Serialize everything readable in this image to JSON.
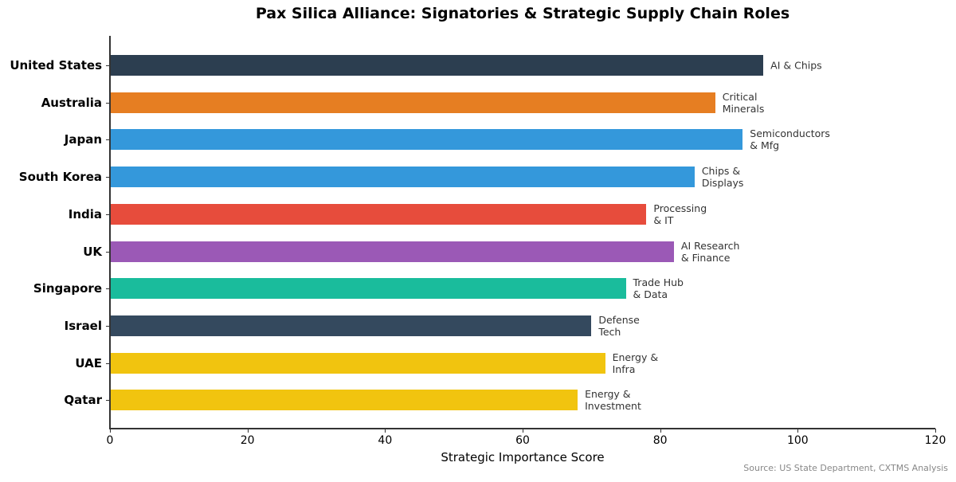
{
  "chart_data": {
    "type": "bar",
    "orientation": "horizontal",
    "title": "Pax Silica Alliance: Signatories & Strategic Supply Chain Roles",
    "xlabel": "Strategic Importance Score",
    "ylabel": "",
    "xlim": [
      0,
      120
    ],
    "xticks": [
      "0",
      "20",
      "40",
      "60",
      "80",
      "100",
      "120"
    ],
    "grid": false,
    "categories": [
      "United States",
      "Australia",
      "Japan",
      "South Korea",
      "India",
      "UK",
      "Singapore",
      "Israel",
      "UAE",
      "Qatar"
    ],
    "values": [
      95,
      88,
      92,
      85,
      78,
      82,
      75,
      70,
      72,
      68
    ],
    "annotations": [
      "AI & Chips",
      "Critical\nMinerals",
      "Semiconductors\n& Mfg",
      "Chips &\nDisplays",
      "Processing\n& IT",
      "AI Research\n& Finance",
      "Trade Hub\n& Data",
      "Defense\nTech",
      "Energy &\nInfra",
      "Energy &\nInvestment"
    ],
    "colors": [
      "#2c3e50",
      "#e67e22",
      "#3498db",
      "#3498db",
      "#e74c3c",
      "#9b59b6",
      "#1abc9c",
      "#34495e",
      "#f1c40f",
      "#f1c40f"
    ],
    "source": "Source: US State Department, CXTMS Analysis"
  }
}
